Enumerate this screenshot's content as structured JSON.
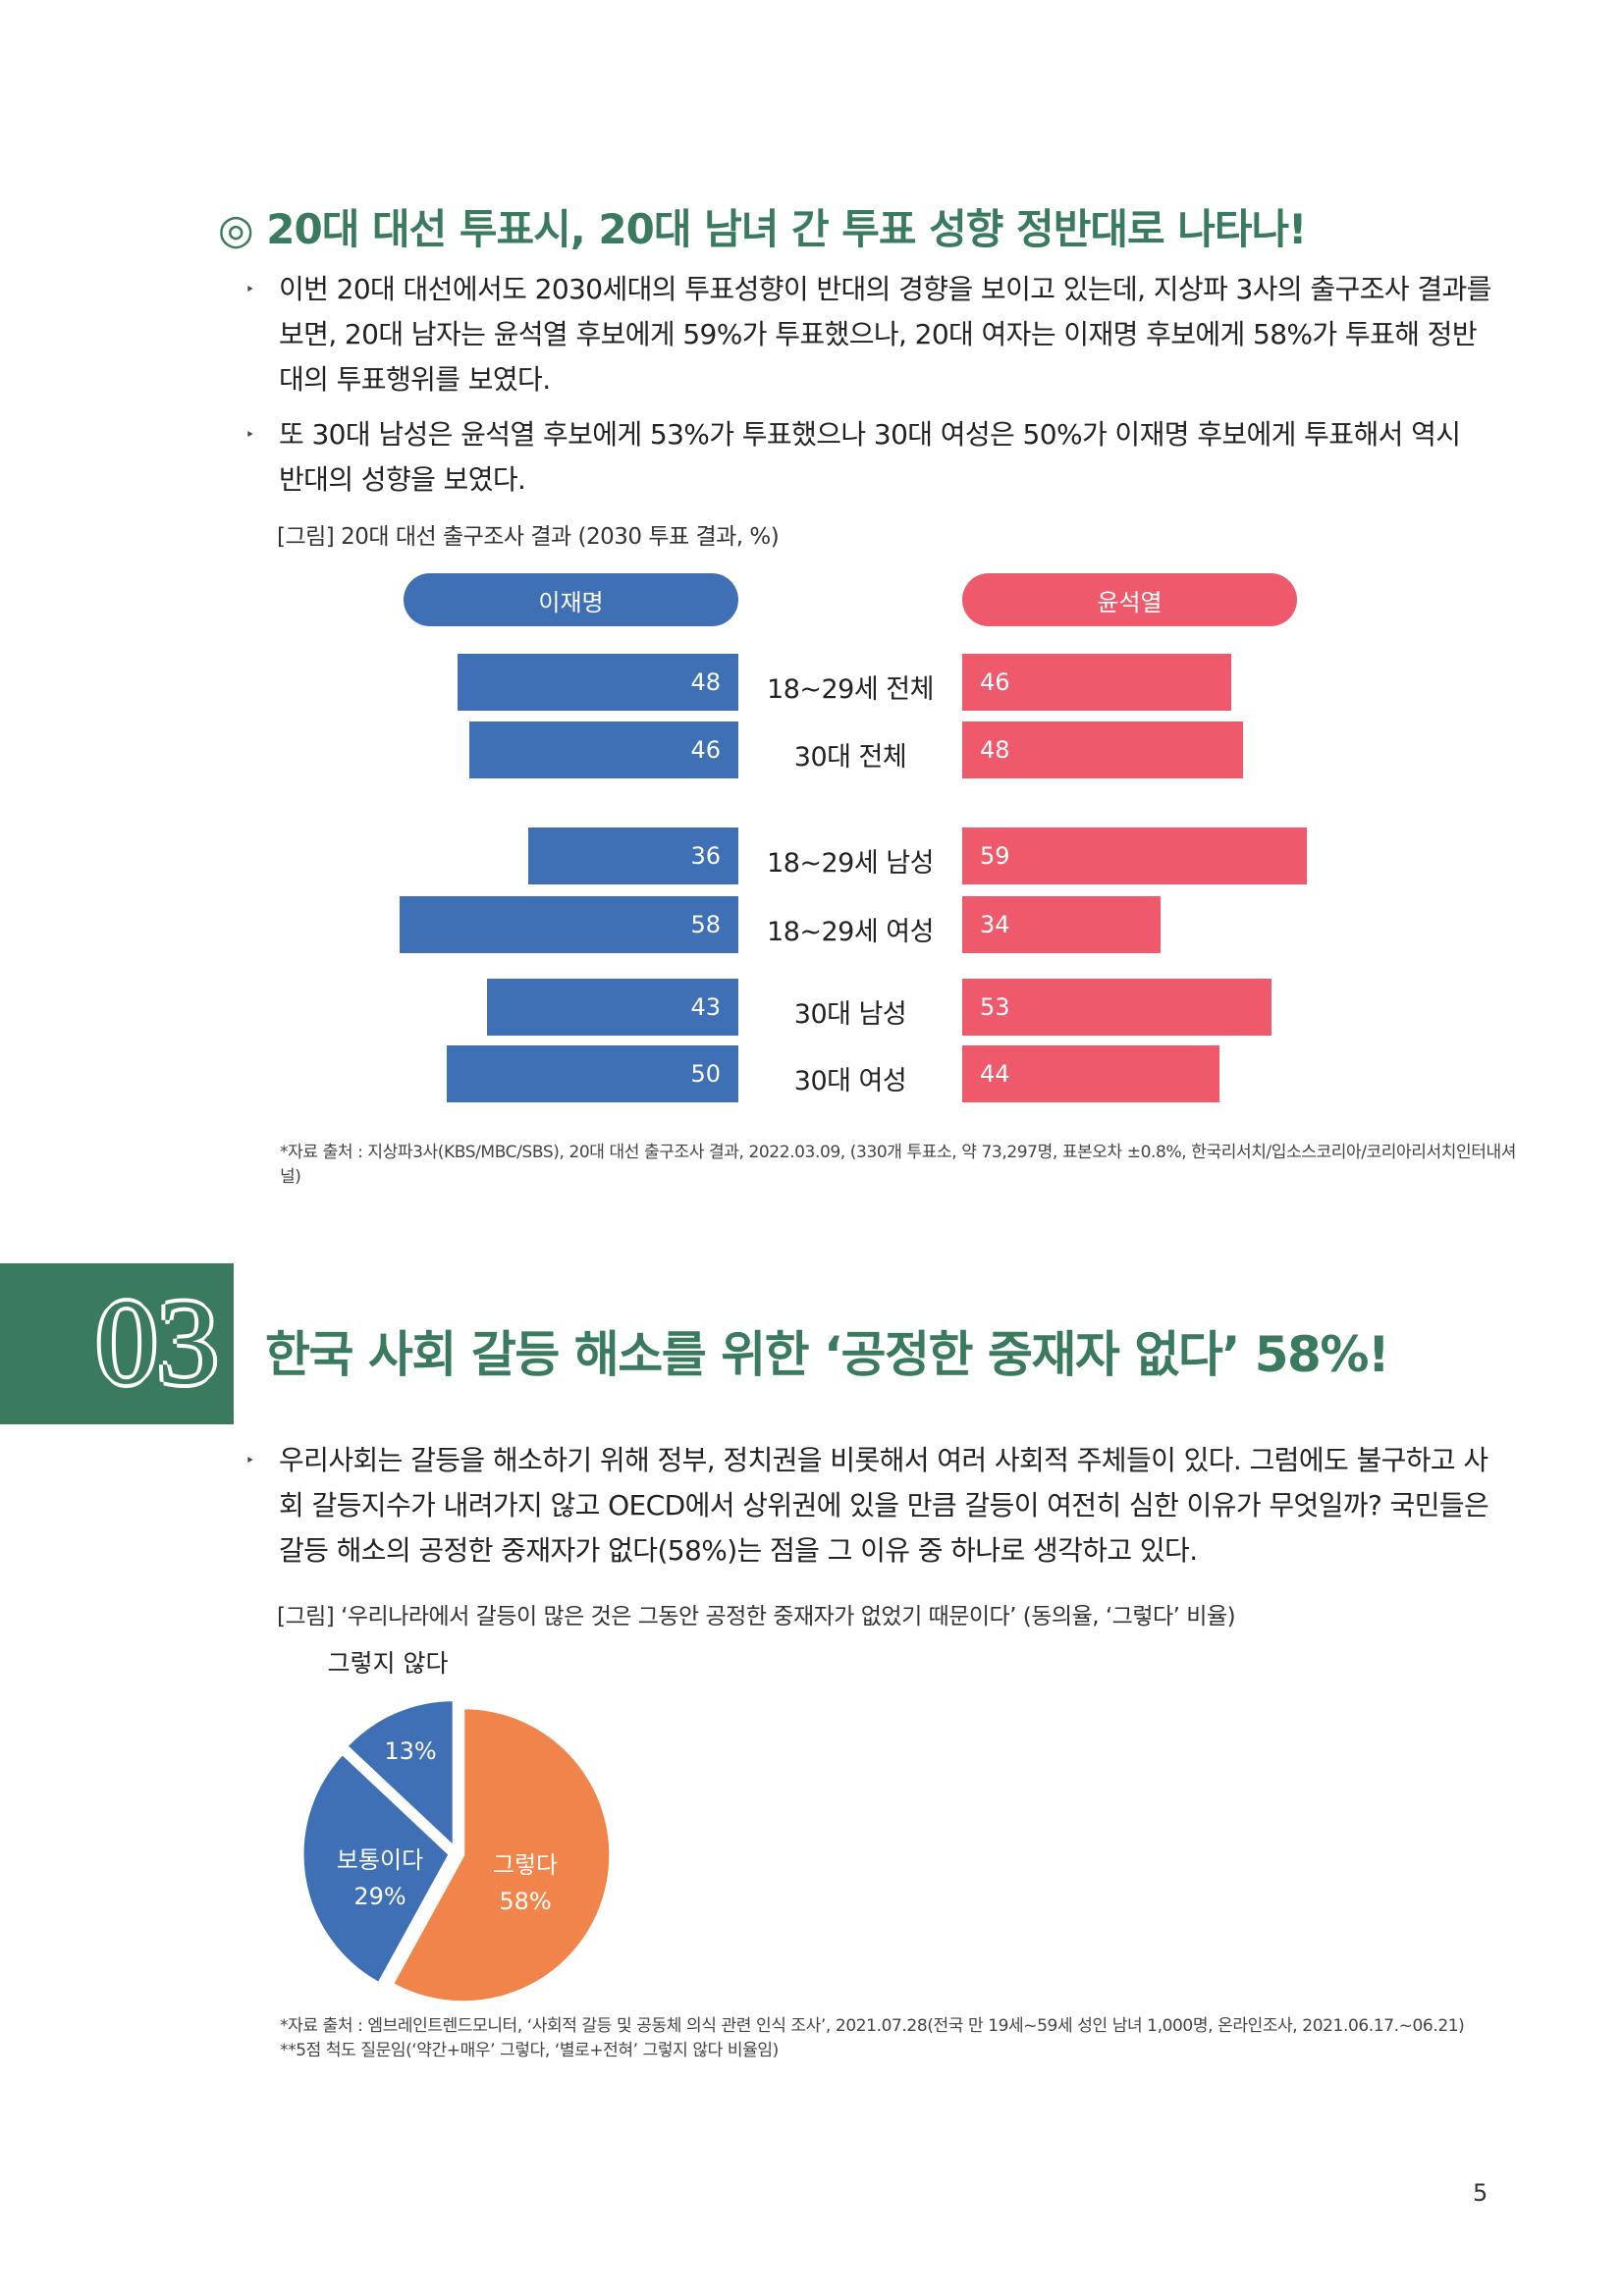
{
  "section1": {
    "heading": "◎ 20대 대선 투표시, 20대 남녀 간 투표 성향 정반대로 나타나!",
    "bullets": [
      "이번 20대 대선에서도 2030세대의 투표성향이 반대의 경향을 보이고 있는데, 지상파 3사의 출구조사 결과를 보면, 20대 남자는 윤석열 후보에게 59%가 투표했으나, 20대 여자는 이재명 후보에게 58%가 투표해 정반대의 투표행위를 보였다.",
      "또 30대 남성은 윤석열 후보에게 53%가 투표했으나 30대 여성은 50%가 이재명 후보에게 투표해서 역시 반대의 성향을 보였다."
    ],
    "figure_caption": "[그림] 20대 대선 출구조사 결과 (2030 투표 결과, %)",
    "source": "*자료 출처 : 지상파3사(KBS/MBC/SBS), 20대 대선 출구조사 결과, 2022.03.09, (330개 투표소, 약 73,297명, 표본오차 ±0.8%, 한국리서치/입소스코리아/코리아리서치인터내셔널)"
  },
  "chart_data": [
    {
      "type": "bar",
      "orientation": "horizontal-butterfly",
      "categories": [
        "18~29세 전체",
        "30대 전체",
        "18~29세 남성",
        "18~29세 여성",
        "30대 남성",
        "30대 여성"
      ],
      "series": [
        {
          "name": "이재명",
          "values": [
            48,
            46,
            36,
            58,
            43,
            50
          ],
          "color": "#3f6fb5"
        },
        {
          "name": "윤석열",
          "values": [
            46,
            48,
            59,
            34,
            53,
            44
          ],
          "color": "#ee5a6b"
        }
      ],
      "groups": [
        [
          0,
          1
        ],
        [
          2,
          3
        ],
        [
          4,
          5
        ]
      ],
      "grid": false
    },
    {
      "type": "pie",
      "slices": [
        {
          "label": "그렇다",
          "value": 58,
          "display": "58%",
          "color": "#f0844a"
        },
        {
          "label": "보통이다",
          "value": 29,
          "display": "29%",
          "color": "#3f6fb5"
        },
        {
          "label": "그렇지 않다",
          "value": 13,
          "display": "13%",
          "color": "#3f6fb5"
        }
      ]
    }
  ],
  "section2": {
    "number": "03",
    "heading": "한국 사회 갈등 해소를 위한 ‘공정한 중재자 없다’ 58%!",
    "bullet": "우리사회는 갈등을 해소하기 위해 정부, 정치권을 비롯해서 여러 사회적 주체들이 있다. 그럼에도 불구하고 사회 갈등지수가 내려가지 않고 OECD에서 상위권에 있을 만큼 갈등이 여전히 심한 이유가 무엇일까? 국민들은 갈등 해소의 공정한 중재자가 없다(58%)는 점을 그 이유 중 하나로 생각하고 있다.",
    "figure_caption": "[그림] ‘우리나라에서 갈등이 많은 것은 그동안 공정한 중재자가 없었기 때문이다’ (동의율, ‘그렇다’ 비율)",
    "source_lines": [
      "*자료 출처 : 엠브레인트렌드모니터, ‘사회적 갈등 및 공동체 의식 관련 인식 조사’, 2021.07.28(전국 만 19세~59세 성인 남녀 1,000명, 온라인조사, 2021.06.17.~06.21)",
      "**5점 척도 질문임(‘약간+매우’ 그렇다, ‘별로+전혀’ 그렇지 않다 비율임)"
    ]
  },
  "page_number": "5",
  "bullet_mark": "‣"
}
